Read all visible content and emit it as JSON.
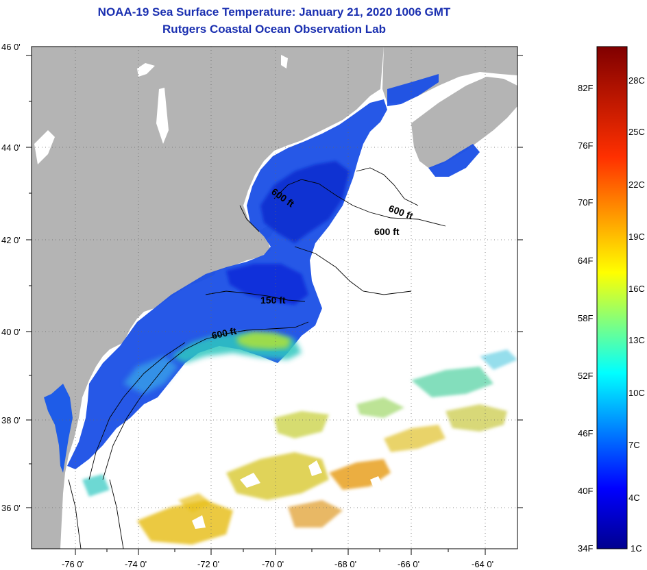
{
  "title_line1": "NOAA-19 Sea Surface Temperature:  January 21, 2020 1006 GMT",
  "title_line2": "Rutgers Coastal Ocean Observation Lab",
  "map": {
    "lon_ticks": [
      "-76 0'",
      "-74 0'",
      "-72 0'",
      "-70 0'",
      "-68 0'",
      "-66 0'",
      "-64 0'"
    ],
    "lat_ticks": [
      "46 0'",
      "44 0'",
      "42 0'",
      "40 0'",
      "38 0'",
      "36 0'"
    ],
    "contour_labels": [
      "600 ft",
      "600 ft",
      "600 ft",
      "150 ft",
      "600 ft"
    ],
    "colors": {
      "land": "#b4b4b4",
      "ocean_no_data": "#ffffff",
      "cold_water": "#1a4fe6",
      "warm_water": "#e8c020"
    }
  },
  "colorbar": {
    "f_labels": [
      "82F",
      "76F",
      "70F",
      "64F",
      "58F",
      "52F",
      "46F",
      "40F",
      "34F"
    ],
    "c_labels": [
      "28C",
      "25C",
      "22C",
      "19C",
      "16C",
      "13C",
      "10C",
      "7C",
      "4C",
      "1C"
    ]
  }
}
